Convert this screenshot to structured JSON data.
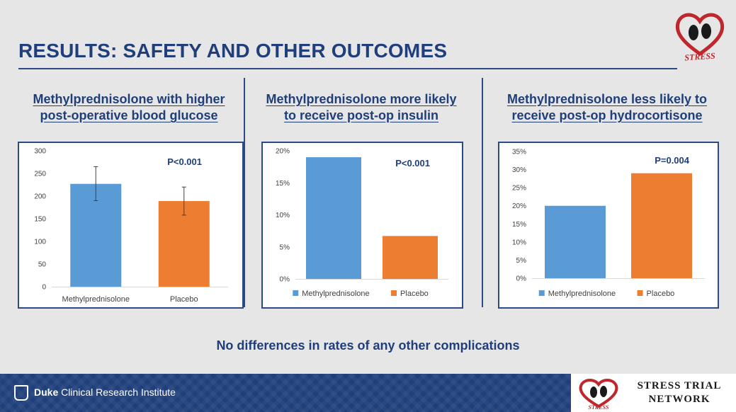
{
  "slide": {
    "title": "RESULTS: SAFETY AND OTHER OUTCOMES",
    "footer_note": "No differences in rates of any other complications",
    "institute_bold": "Duke",
    "institute_rest": " Clinical Research Institute",
    "network_line1": "STRESS TRIAL",
    "network_line2": "NETWORK",
    "logo_text": "STRESS"
  },
  "panels": [
    {
      "heading_line1": "Methylprednisolone with higher",
      "heading_line2": "post-operative  blood glucose"
    },
    {
      "heading_line1": "Methylprednisolone more likely",
      "heading_line2": "to receive post-op insulin"
    },
    {
      "heading_line1": "Methylprednisolone less likely to",
      "heading_line2": "receive post-op hydrocortisone"
    }
  ],
  "colors": {
    "methyl": "#5b9bd5",
    "placebo": "#ed7d31",
    "navy": "#1f3e7a",
    "axis_text": "#404040",
    "grid": "#d9d9d9",
    "heart": "#c0272d"
  },
  "chart_data": [
    {
      "type": "bar",
      "title": "",
      "categories": [
        "Methylprednisolone",
        "Placebo"
      ],
      "values": [
        227,
        189
      ],
      "error_bars": [
        [
          190,
          265
        ],
        [
          158,
          220
        ]
      ],
      "ylim": [
        0,
        300
      ],
      "yticks": [
        0,
        50,
        100,
        150,
        200,
        250,
        300
      ],
      "ytick_labels": [
        "0",
        "50",
        "100",
        "150",
        "200",
        "250",
        "300"
      ],
      "annotation": "P<0.001",
      "legend": "none",
      "category_labels_on_axis": true,
      "grid": false
    },
    {
      "type": "bar",
      "title": "",
      "categories": [
        "Methylprednisolone",
        "Placebo"
      ],
      "values": [
        19,
        6.7
      ],
      "ylim": [
        0,
        20
      ],
      "yticks": [
        0,
        5,
        10,
        15,
        20
      ],
      "ytick_labels": [
        "0%",
        "5%",
        "10%",
        "15%",
        "20%"
      ],
      "annotation": "P<0.001",
      "legend": "bottom",
      "category_labels_on_axis": false,
      "grid": false
    },
    {
      "type": "bar",
      "title": "",
      "categories": [
        "Methylprednisolone",
        "Placebo"
      ],
      "values": [
        20,
        29
      ],
      "ylim": [
        0,
        35
      ],
      "yticks": [
        0,
        5,
        10,
        15,
        20,
        25,
        30,
        35
      ],
      "ytick_labels": [
        "0%",
        "5%",
        "10%",
        "15%",
        "20%",
        "25%",
        "30%",
        "35%"
      ],
      "annotation": "P=0.004",
      "legend": "bottom",
      "category_labels_on_axis": false,
      "grid": false
    }
  ]
}
